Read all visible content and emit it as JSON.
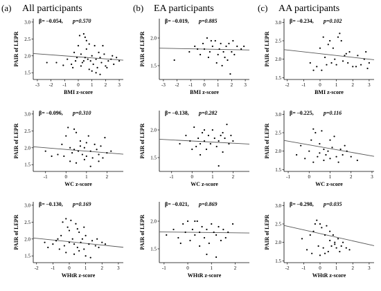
{
  "columns": [
    {
      "letter": "(a)",
      "title": "All participants"
    },
    {
      "letter": "(b)",
      "title": "EA participants"
    },
    {
      "letter": "(c)",
      "title": "AA participants"
    }
  ],
  "chart_data": [
    {
      "type": "scatter",
      "row": 0,
      "col": 0,
      "xlabel": "BMI z-score",
      "ylabel": "PAIR of LEPR",
      "xlim": [
        -3.3,
        3.3
      ],
      "ylim": [
        1.3,
        3.1
      ],
      "xticks": [
        "-3",
        "-2",
        "-1",
        "0",
        "1",
        "2",
        "3"
      ],
      "yticks": [
        "1.5",
        "2.0",
        "2.5",
        "3.0"
      ],
      "beta": "β= –0.054,",
      "p": "p=0.570",
      "trend": {
        "intercept": 1.97,
        "slope": -0.03
      },
      "points": [
        [
          -2.3,
          1.8
        ],
        [
          -1.6,
          1.8
        ],
        [
          -1.1,
          1.72
        ],
        [
          -0.8,
          1.9
        ],
        [
          -0.5,
          1.75
        ],
        [
          -0.3,
          2.1
        ],
        [
          -0.2,
          1.85
        ],
        [
          -0.1,
          1.95
        ],
        [
          0,
          2.3
        ],
        [
          0.1,
          2.6
        ],
        [
          0.2,
          2.05
        ],
        [
          0.3,
          1.8
        ],
        [
          0.4,
          2.65
        ],
        [
          0.5,
          2.55
        ],
        [
          0.6,
          2.45
        ],
        [
          0.7,
          1.9
        ],
        [
          0.8,
          2.35
        ],
        [
          0.9,
          1.85
        ],
        [
          1,
          2.0
        ],
        [
          1.1,
          1.75
        ],
        [
          1.2,
          2.3
        ],
        [
          1.3,
          1.9
        ],
        [
          1.4,
          1.65
        ],
        [
          1.5,
          2.1
        ],
        [
          1.6,
          1.95
        ],
        [
          1.7,
          1.8
        ],
        [
          1.9,
          2.05
        ],
        [
          2,
          1.7
        ],
        [
          2.2,
          1.85
        ],
        [
          2.4,
          1.9
        ],
        [
          2.6,
          1.75
        ],
        [
          2.8,
          1.95
        ],
        [
          3,
          1.85
        ],
        [
          0.2,
          1.7
        ],
        [
          0.5,
          1.95
        ],
        [
          0.8,
          1.6
        ],
        [
          1.3,
          1.5
        ],
        [
          1.6,
          1.45
        ],
        [
          0.4,
          1.85
        ],
        [
          1.0,
          1.55
        ],
        [
          2.1,
          1.65
        ],
        [
          -0.4,
          1.65
        ],
        [
          0.6,
          2.2
        ],
        [
          1.8,
          2.3
        ],
        [
          2.5,
          2.0
        ]
      ]
    },
    {
      "type": "scatter",
      "row": 0,
      "col": 1,
      "xlabel": "BMI z-score",
      "ylabel": "PAIR of LEPR",
      "xlim": [
        -3.3,
        3.3
      ],
      "ylim": [
        1.25,
        2.35
      ],
      "xticks": [
        "-3",
        "-2",
        "-1",
        "0",
        "1",
        "2",
        "3"
      ],
      "yticks": [
        "1.5",
        "2.0"
      ],
      "beta": "β= –0.019,",
      "p": "p=0.885",
      "trend": {
        "intercept": 1.8,
        "slope": -0.005
      },
      "points": [
        [
          -2.2,
          1.6
        ],
        [
          -1.1,
          1.75
        ],
        [
          -0.7,
          1.85
        ],
        [
          -0.3,
          1.7
        ],
        [
          -0.1,
          1.9
        ],
        [
          0,
          1.8
        ],
        [
          0.2,
          2.0
        ],
        [
          0.4,
          1.75
        ],
        [
          0.6,
          1.85
        ],
        [
          0.8,
          1.95
        ],
        [
          1,
          1.7
        ],
        [
          1.1,
          1.8
        ],
        [
          1.2,
          1.9
        ],
        [
          1.4,
          1.75
        ],
        [
          1.5,
          1.65
        ],
        [
          1.6,
          1.85
        ],
        [
          1.8,
          1.9
        ],
        [
          2,
          1.75
        ],
        [
          2.2,
          1.7
        ],
        [
          2.4,
          1.85
        ],
        [
          2.7,
          1.8
        ],
        [
          0.3,
          1.65
        ],
        [
          0.9,
          1.55
        ],
        [
          1.3,
          1.5
        ],
        [
          1.7,
          1.6
        ],
        [
          0.5,
          1.95
        ],
        [
          2.9,
          1.85
        ],
        [
          -0.5,
          1.8
        ],
        [
          1.9,
          1.35
        ],
        [
          2.1,
          1.95
        ]
      ]
    },
    {
      "type": "scatter",
      "row": 0,
      "col": 2,
      "xlabel": "BMI z-score",
      "ylabel": "PAIR of LEPR",
      "xlim": [
        -2.2,
        3.3
      ],
      "ylim": [
        1.45,
        3.1
      ],
      "xticks": [
        "-2",
        "-1",
        "0",
        "1",
        "2",
        "3"
      ],
      "yticks": [
        "1.5",
        "2.0",
        "2.5",
        "3.0"
      ],
      "beta": "β= –0.234,",
      "p": "p=0.102",
      "trend": {
        "intercept": 2.15,
        "slope": -0.05
      },
      "points": [
        [
          -0.6,
          1.9
        ],
        [
          -0.4,
          1.7
        ],
        [
          -0.2,
          1.8
        ],
        [
          0,
          2.3
        ],
        [
          0.2,
          2.6
        ],
        [
          0.3,
          2.05
        ],
        [
          0.5,
          2.4
        ],
        [
          0.6,
          2.5
        ],
        [
          0.7,
          1.9
        ],
        [
          0.8,
          2.3
        ],
        [
          1,
          1.85
        ],
        [
          1.1,
          2.6
        ],
        [
          1.3,
          2.5
        ],
        [
          1.5,
          2.1
        ],
        [
          1.7,
          1.9
        ],
        [
          1.8,
          2.2
        ],
        [
          2,
          1.8
        ],
        [
          2.3,
          2.1
        ],
        [
          2.5,
          1.85
        ],
        [
          2.7,
          2.0
        ],
        [
          2.9,
          1.75
        ],
        [
          3,
          1.9
        ],
        [
          0.1,
          1.7
        ],
        [
          0.9,
          2.0
        ],
        [
          1.2,
          2.7
        ],
        [
          1.6,
          2.15
        ],
        [
          2.2,
          1.8
        ],
        [
          0.4,
          1.85
        ],
        [
          1.4,
          1.95
        ],
        [
          2.8,
          2.2
        ]
      ]
    },
    {
      "type": "scatter",
      "row": 1,
      "col": 0,
      "xlabel": "WC z-score",
      "ylabel": "PAIR of LEPR",
      "xlim": [
        -1.6,
        2.8
      ],
      "ylim": [
        1.3,
        3.1
      ],
      "xticks": [
        "-1",
        "0",
        "1",
        "2"
      ],
      "yticks": [
        "1.5",
        "2.0",
        "2.5",
        "3.0"
      ],
      "beta": "β= –0.096,",
      "p": "p=0.310",
      "trend": {
        "intercept": 1.95,
        "slope": -0.05
      },
      "points": [
        [
          -1.0,
          1.9
        ],
        [
          -0.7,
          1.75
        ],
        [
          -0.4,
          1.8
        ],
        [
          -0.2,
          2.1
        ],
        [
          0,
          2.35
        ],
        [
          0.1,
          2.6
        ],
        [
          0.2,
          2.0
        ],
        [
          0.3,
          1.85
        ],
        [
          0.4,
          2.55
        ],
        [
          0.5,
          2.45
        ],
        [
          0.6,
          1.9
        ],
        [
          0.7,
          2.2
        ],
        [
          0.8,
          1.8
        ],
        [
          0.9,
          2.0
        ],
        [
          1,
          1.75
        ],
        [
          1.1,
          2.35
        ],
        [
          1.2,
          1.9
        ],
        [
          1.3,
          1.7
        ],
        [
          1.4,
          2.1
        ],
        [
          1.5,
          1.95
        ],
        [
          1.6,
          1.8
        ],
        [
          1.7,
          2.05
        ],
        [
          1.8,
          1.7
        ],
        [
          2,
          1.85
        ],
        [
          2.2,
          1.9
        ],
        [
          0.2,
          1.6
        ],
        [
          0.5,
          1.55
        ],
        [
          0.9,
          1.65
        ],
        [
          1.2,
          1.45
        ],
        [
          1.6,
          1.6
        ],
        [
          -0.1,
          1.75
        ],
        [
          0.7,
          2.05
        ],
        [
          1.9,
          2.3
        ],
        [
          0.4,
          1.95
        ],
        [
          1.0,
          2.15
        ]
      ]
    },
    {
      "type": "scatter",
      "row": 1,
      "col": 1,
      "xlabel": "WC z-score",
      "ylabel": "PAIR of LEPR",
      "xlim": [
        -1.6,
        2.8
      ],
      "ylim": [
        1.25,
        2.35
      ],
      "xticks": [
        "-1",
        "0",
        "1",
        "2"
      ],
      "yticks": [
        "1.5",
        "2.0"
      ],
      "beta": "β= –0.138,",
      "p": "p=0.282",
      "trend": {
        "intercept": 1.8,
        "slope": -0.02
      },
      "points": [
        [
          -0.6,
          1.75
        ],
        [
          -0.3,
          1.9
        ],
        [
          -0.1,
          1.8
        ],
        [
          0.1,
          2.05
        ],
        [
          0.2,
          1.7
        ],
        [
          0.3,
          1.85
        ],
        [
          0.4,
          1.75
        ],
        [
          0.5,
          1.95
        ],
        [
          0.6,
          1.8
        ],
        [
          0.7,
          1.65
        ],
        [
          0.8,
          1.9
        ],
        [
          0.9,
          1.75
        ],
        [
          1,
          2.0
        ],
        [
          1.1,
          1.85
        ],
        [
          1.2,
          1.7
        ],
        [
          1.3,
          1.8
        ],
        [
          1.4,
          1.9
        ],
        [
          1.5,
          1.6
        ],
        [
          1.6,
          1.85
        ],
        [
          1.7,
          2.1
        ],
        [
          1.8,
          1.75
        ],
        [
          2,
          1.8
        ],
        [
          0.4,
          1.55
        ],
        [
          1.3,
          1.35
        ],
        [
          0.6,
          2.0
        ],
        [
          1.5,
          1.95
        ],
        [
          0,
          1.65
        ],
        [
          1.9,
          1.9
        ]
      ]
    },
    {
      "type": "scatter",
      "row": 1,
      "col": 2,
      "xlabel": "WC z-score",
      "ylabel": "PAIR of LEPR",
      "xlim": [
        -1.2,
        3.1
      ],
      "ylim": [
        1.45,
        3.1
      ],
      "xticks": [
        "-1",
        "0",
        "1",
        "2",
        "3"
      ],
      "yticks": [
        "1.5",
        "2.0",
        "2.5",
        "3.0"
      ],
      "beta": "β= –0.225,",
      "p": "p=0.116",
      "trend": {
        "intercept": 2.17,
        "slope": -0.1
      },
      "points": [
        [
          -0.6,
          1.9
        ],
        [
          -0.4,
          2.15
        ],
        [
          -0.2,
          1.8
        ],
        [
          0,
          2.0
        ],
        [
          0.1,
          2.3
        ],
        [
          0.2,
          2.6
        ],
        [
          0.3,
          2.5
        ],
        [
          0.4,
          1.85
        ],
        [
          0.5,
          2.2
        ],
        [
          0.6,
          2.55
        ],
        [
          0.7,
          1.75
        ],
        [
          0.8,
          1.9
        ],
        [
          0.9,
          2.0
        ],
        [
          1,
          1.8
        ],
        [
          1.1,
          2.1
        ],
        [
          1.2,
          2.4
        ],
        [
          1.3,
          1.85
        ],
        [
          1.4,
          1.7
        ],
        [
          1.5,
          2.05
        ],
        [
          1.6,
          1.9
        ],
        [
          1.8,
          2.0
        ],
        [
          2,
          1.85
        ],
        [
          2.3,
          1.75
        ],
        [
          0.2,
          1.7
        ],
        [
          0.7,
          2.05
        ],
        [
          1.0,
          2.3
        ],
        [
          1.7,
          2.15
        ],
        [
          0.5,
          1.95
        ]
      ]
    },
    {
      "type": "scatter",
      "row": 2,
      "col": 0,
      "xlabel": "WHtR z-score",
      "ylabel": "PAIR of LEPR",
      "xlim": [
        -2.2,
        3.3
      ],
      "ylim": [
        1.3,
        3.1
      ],
      "xticks": [
        "-2",
        "-1",
        "0",
        "1",
        "2",
        "3"
      ],
      "yticks": [
        "1.5",
        "2.0",
        "2.5",
        "3.0"
      ],
      "beta": "β= –0.130,",
      "p": "p=0.169",
      "trend": {
        "intercept": 1.92,
        "slope": -0.05
      },
      "points": [
        [
          -1.5,
          1.9
        ],
        [
          -1.3,
          1.75
        ],
        [
          -1.0,
          1.85
        ],
        [
          -0.8,
          1.95
        ],
        [
          -0.6,
          1.7
        ],
        [
          -0.5,
          2.1
        ],
        [
          -0.4,
          2.5
        ],
        [
          -0.3,
          1.8
        ],
        [
          -0.2,
          2.6
        ],
        [
          -0.1,
          2.35
        ],
        [
          0,
          1.9
        ],
        [
          0.1,
          2.55
        ],
        [
          0.2,
          2.0
        ],
        [
          0.3,
          1.85
        ],
        [
          0.4,
          2.45
        ],
        [
          0.5,
          1.75
        ],
        [
          0.6,
          2.2
        ],
        [
          0.7,
          1.9
        ],
        [
          0.8,
          2.0
        ],
        [
          0.9,
          1.7
        ],
        [
          1,
          2.1
        ],
        [
          1.2,
          1.85
        ],
        [
          1.4,
          1.95
        ],
        [
          1.6,
          1.8
        ],
        [
          1.8,
          1.75
        ],
        [
          2,
          1.9
        ],
        [
          2.2,
          1.85
        ],
        [
          -0.2,
          1.6
        ],
        [
          0.3,
          1.55
        ],
        [
          0.6,
          1.65
        ],
        [
          1.0,
          1.5
        ],
        [
          1.3,
          1.45
        ],
        [
          0,
          2.25
        ],
        [
          0.5,
          2.3
        ],
        [
          -0.7,
          2.0
        ],
        [
          0.9,
          2.35
        ],
        [
          1.7,
          2.0
        ]
      ]
    },
    {
      "type": "scatter",
      "row": 2,
      "col": 1,
      "xlabel": "WHtR z-score",
      "ylabel": "PAIR of LEPR",
      "xlim": [
        -1.2,
        2.6
      ],
      "ylim": [
        1.25,
        2.35
      ],
      "xticks": [
        "-1",
        "0",
        "1",
        "2"
      ],
      "yticks": [
        "1.5",
        "2.0"
      ],
      "beta": "β= –0.021,",
      "p": "p=0.869",
      "trend": {
        "intercept": 1.8,
        "slope": -0.005
      },
      "points": [
        [
          -0.9,
          1.75
        ],
        [
          -0.6,
          1.85
        ],
        [
          -0.4,
          1.7
        ],
        [
          -0.2,
          1.95
        ],
        [
          -0.1,
          1.8
        ],
        [
          0,
          2.0
        ],
        [
          0.1,
          1.65
        ],
        [
          0.2,
          1.85
        ],
        [
          0.3,
          1.75
        ],
        [
          0.4,
          2.0
        ],
        [
          0.5,
          1.8
        ],
        [
          0.6,
          1.9
        ],
        [
          0.7,
          1.7
        ],
        [
          0.8,
          1.85
        ],
        [
          0.9,
          1.6
        ],
        [
          1,
          1.95
        ],
        [
          1.1,
          1.8
        ],
        [
          1.2,
          1.75
        ],
        [
          1.3,
          1.9
        ],
        [
          1.4,
          1.65
        ],
        [
          1.5,
          1.85
        ],
        [
          1.7,
          1.8
        ],
        [
          1.9,
          1.95
        ],
        [
          0.5,
          1.55
        ],
        [
          0.8,
          1.4
        ],
        [
          1.2,
          1.35
        ],
        [
          -0.3,
          1.6
        ],
        [
          0.3,
          2.0
        ],
        [
          1.6,
          1.7
        ]
      ]
    },
    {
      "type": "scatter",
      "row": 2,
      "col": 2,
      "xlabel": "WHtR z-score",
      "ylabel": "PAIR of LEPR",
      "xlim": [
        -2.2,
        3.3
      ],
      "ylim": [
        1.45,
        3.1
      ],
      "xticks": [
        "-2",
        "-1",
        "0",
        "1",
        "2",
        "3"
      ],
      "yticks": [
        "1.5",
        "2.0",
        "2.5",
        "3.0"
      ],
      "beta": "β= –0.298,",
      "p": "p=0.035",
      "trend": {
        "intercept": 2.24,
        "slope": -0.1
      },
      "points": [
        [
          -1.1,
          2.1
        ],
        [
          -0.8,
          1.8
        ],
        [
          -0.6,
          2.2
        ],
        [
          -0.5,
          1.7
        ],
        [
          -0.3,
          2.5
        ],
        [
          -0.2,
          2.6
        ],
        [
          -0.1,
          1.9
        ],
        [
          0,
          2.5
        ],
        [
          0.1,
          2.4
        ],
        [
          0.2,
          1.85
        ],
        [
          0.3,
          2.2
        ],
        [
          0.4,
          2.45
        ],
        [
          0.5,
          1.75
        ],
        [
          0.6,
          2.05
        ],
        [
          0.7,
          1.9
        ],
        [
          0.8,
          2.2
        ],
        [
          0.9,
          2.0
        ],
        [
          1,
          1.85
        ],
        [
          1.1,
          2.1
        ],
        [
          1.2,
          1.75
        ],
        [
          1.4,
          2.0
        ],
        [
          1.6,
          1.85
        ],
        [
          1.8,
          1.8
        ],
        [
          0,
          1.65
        ],
        [
          0.3,
          1.7
        ],
        [
          0.6,
          2.3
        ],
        [
          0.9,
          1.95
        ],
        [
          1.3,
          1.9
        ],
        [
          -0.4,
          2.3
        ]
      ]
    }
  ]
}
